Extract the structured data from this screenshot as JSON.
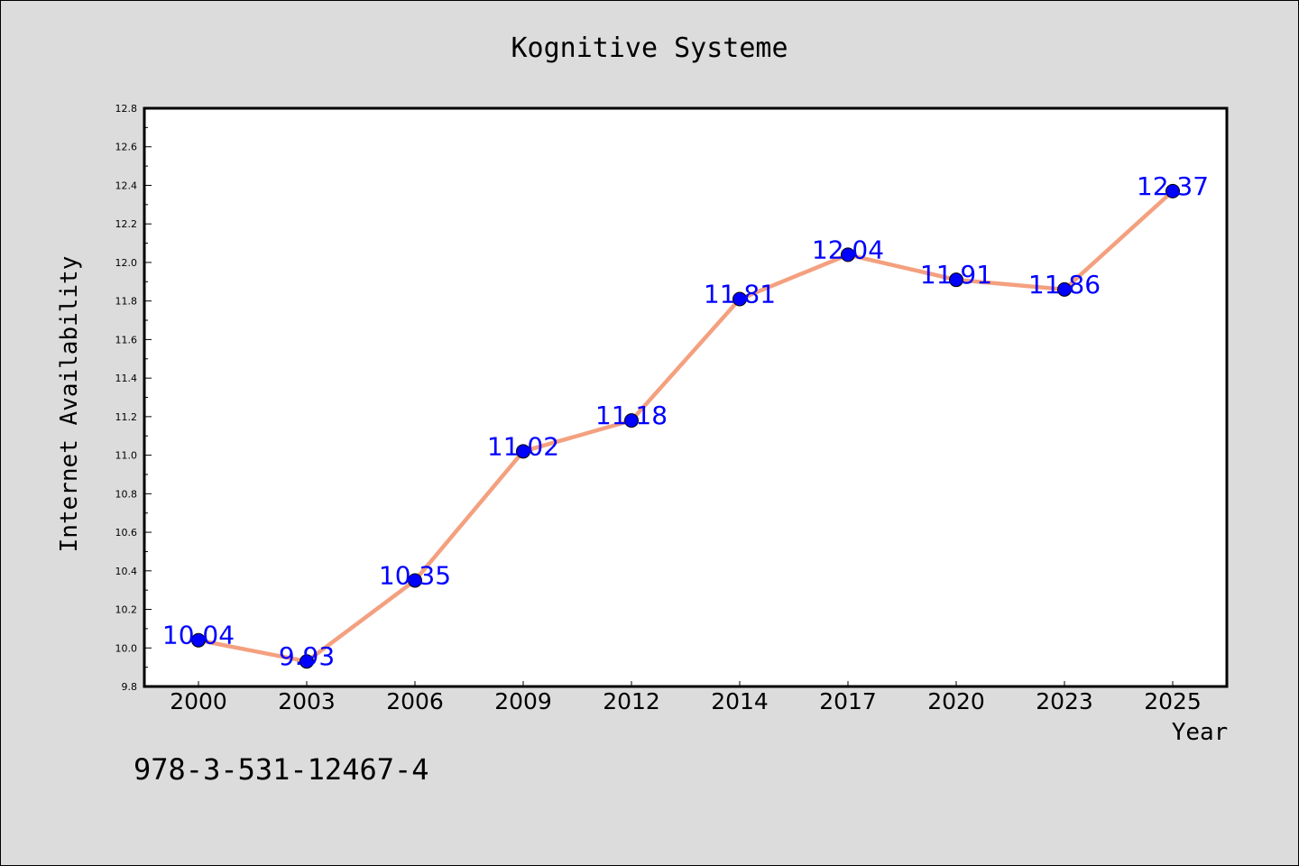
{
  "chart_data": {
    "type": "line",
    "title": "Kognitive Systeme",
    "xlabel": "Year",
    "ylabel": "Internet Availability",
    "categories": [
      "2000",
      "2003",
      "2006",
      "2009",
      "2012",
      "2014",
      "2017",
      "2020",
      "2023",
      "2025"
    ],
    "series": [
      {
        "values": [
          10.04,
          9.93,
          10.35,
          11.02,
          11.18,
          11.81,
          12.04,
          11.91,
          11.86,
          12.37
        ],
        "labels": [
          "10.04",
          "9.93",
          "10.35",
          "11.02",
          "11.18",
          "11.81",
          "12.04",
          "11.91",
          "11.86",
          "12.37"
        ]
      }
    ],
    "ylim": [
      9.8,
      12.8
    ],
    "yticks": [
      "9.8",
      "10.0",
      "10.2",
      "10.4",
      "10.6",
      "10.8",
      "11.0",
      "11.2",
      "11.4",
      "11.6",
      "11.8",
      "12.0",
      "12.2",
      "12.4",
      "12.6",
      "12.8"
    ],
    "grid": false,
    "colors": {
      "line": "#f4a07f",
      "marker": "#0000ff",
      "data_label": "#0000ff",
      "plot_background": "#ffffff",
      "figure_background": "#dcdcdc"
    }
  },
  "footer": {
    "isbn": "978-3-531-12467-4"
  }
}
